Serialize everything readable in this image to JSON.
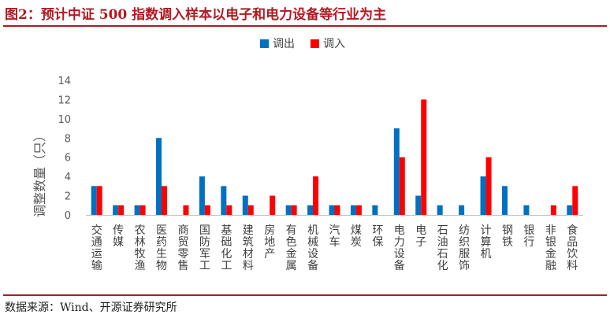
{
  "header": {
    "title": "图2：预计中证 500 指数调入样本以电子和电力设备等行业为主"
  },
  "footer": {
    "source": "数据来源：Wind、开源证券研究所"
  },
  "colors": {
    "out": "#0070c0",
    "in": "#ff0000",
    "accent": "#b01a22"
  },
  "chart_data": {
    "type": "bar",
    "title": "",
    "xlabel": "",
    "ylabel": "调整数量（只）",
    "ylim": [
      0,
      14
    ],
    "yticks": [
      0,
      2,
      4,
      6,
      8,
      10,
      12,
      14
    ],
    "grid": false,
    "legend": "top-center",
    "categories": [
      "交通运输",
      "传媒",
      "农林牧渔",
      "医药生物",
      "商贸零售",
      "国防军工",
      "基础化工",
      "建筑材料",
      "房地产",
      "有色金属",
      "机械设备",
      "汽车",
      "煤炭",
      "环保",
      "电力设备",
      "电子",
      "石油石化",
      "纺织服饰",
      "计算机",
      "钢铁",
      "银行",
      "非银金融",
      "食品饮料"
    ],
    "series": [
      {
        "name": "调出",
        "values": [
          3,
          1,
          1,
          8,
          0,
          4,
          3,
          2,
          0,
          1,
          1,
          1,
          1,
          1,
          9,
          2,
          1,
          1,
          4,
          3,
          1,
          0,
          1
        ]
      },
      {
        "name": "调入",
        "values": [
          3,
          1,
          1,
          3,
          1,
          1,
          1,
          1,
          2,
          1,
          4,
          1,
          1,
          0,
          6,
          12,
          0,
          0,
          6,
          0,
          0,
          1,
          3
        ]
      }
    ]
  }
}
